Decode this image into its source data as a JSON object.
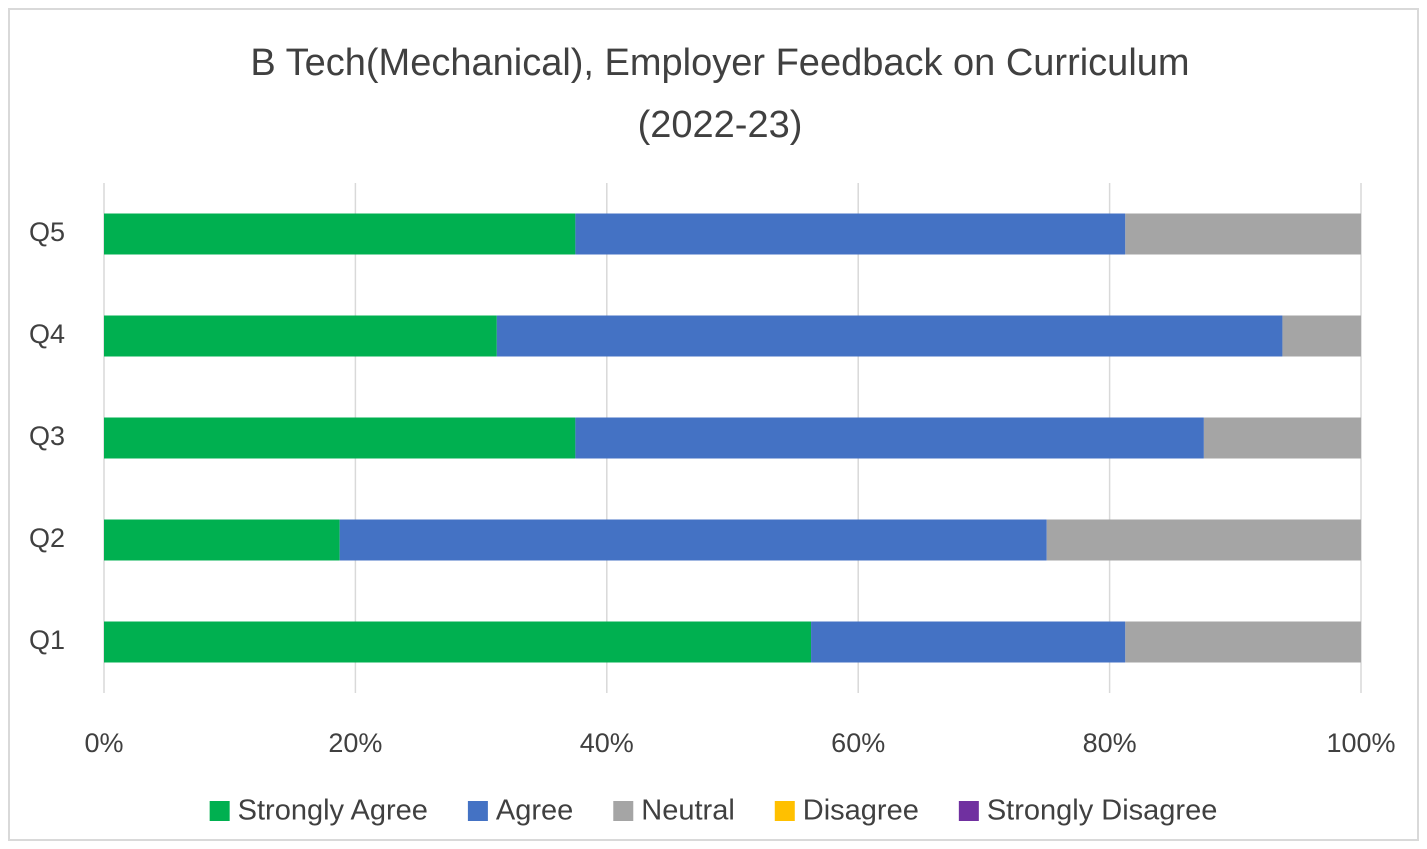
{
  "chart_data": {
    "type": "stacked-barh",
    "title": [
      "B Tech(Mechanical), Employer Feedback on Curriculum",
      "(2022-23)"
    ],
    "categories": [
      "Q1",
      "Q2",
      "Q3",
      "Q4",
      "Q5"
    ],
    "series": [
      {
        "name": "Strongly Agree",
        "color": "#00b050",
        "values": [
          56.25,
          18.75,
          37.5,
          31.25,
          37.5
        ]
      },
      {
        "name": "Agree",
        "color": "#4472c4",
        "values": [
          25,
          56.25,
          50,
          62.5,
          43.75
        ]
      },
      {
        "name": "Neutral",
        "color": "#a5a5a5",
        "values": [
          18.75,
          25,
          12.5,
          6.25,
          18.75
        ]
      },
      {
        "name": "Disagree",
        "color": "#ffc000",
        "values": [
          0,
          0,
          0,
          0,
          0
        ]
      },
      {
        "name": "Strongly Disagree",
        "color": "#7030a0",
        "values": [
          0,
          0,
          0,
          0,
          0
        ]
      }
    ],
    "xlim": [
      0,
      100
    ],
    "xticks": [
      {
        "value": 0,
        "label": "0%"
      },
      {
        "value": 20,
        "label": "20%"
      },
      {
        "value": 40,
        "label": "40%"
      },
      {
        "value": 60,
        "label": "60%"
      },
      {
        "value": 80,
        "label": "80%"
      },
      {
        "value": 100,
        "label": "100%"
      }
    ],
    "grid": true,
    "legend": "bottom"
  }
}
